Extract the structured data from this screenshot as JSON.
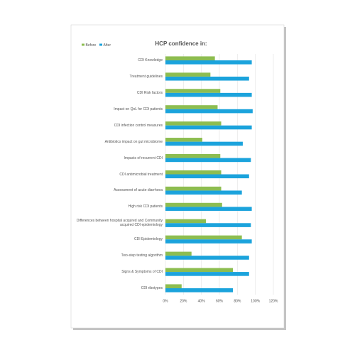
{
  "chart_data": {
    "type": "bar",
    "orientation": "horizontal",
    "title": "HCP confidence in:",
    "categories": [
      "CDI Knowledge",
      "Treatment guidelines",
      "CDI Risk factors",
      "Impact on QoL for CDI patients",
      "CDI infection control measures",
      "Antibiotics impact on gut microbiome",
      "Impacts of recurrent CDI",
      "CDI antimicrobial treatment",
      "Assessment of acute diarrhoea",
      "High risk CDI patients",
      "Differences between hospital acquired and Community acquired CDI epidemiology",
      "CDI Epidemiology",
      "Two-step testing algorithm",
      "Signs & Symptoms of CDI",
      "CDI ribotypes"
    ],
    "series": [
      {
        "name": "Before",
        "color": "#8dbd50",
        "values": [
          55,
          50,
          61,
          58,
          62,
          41,
          61,
          62,
          62,
          63,
          45,
          85,
          29,
          75,
          18
        ]
      },
      {
        "name": "After",
        "color": "#1ba3dc",
        "values": [
          96,
          93,
          96,
          97,
          96,
          86,
          95,
          93,
          85,
          96,
          95,
          96,
          93,
          93,
          75
        ]
      }
    ],
    "xlim": [
      0,
      120
    ],
    "xticks": [
      {
        "value": 0,
        "label": "0%"
      },
      {
        "value": 20,
        "label": "20%"
      },
      {
        "value": 40,
        "label": "40%"
      },
      {
        "value": 60,
        "label": "60%"
      },
      {
        "value": 80,
        "label": "80%"
      },
      {
        "value": 100,
        "label": "100%"
      },
      {
        "value": 120,
        "label": "120%"
      }
    ],
    "grid": true,
    "legend": "top-left"
  }
}
